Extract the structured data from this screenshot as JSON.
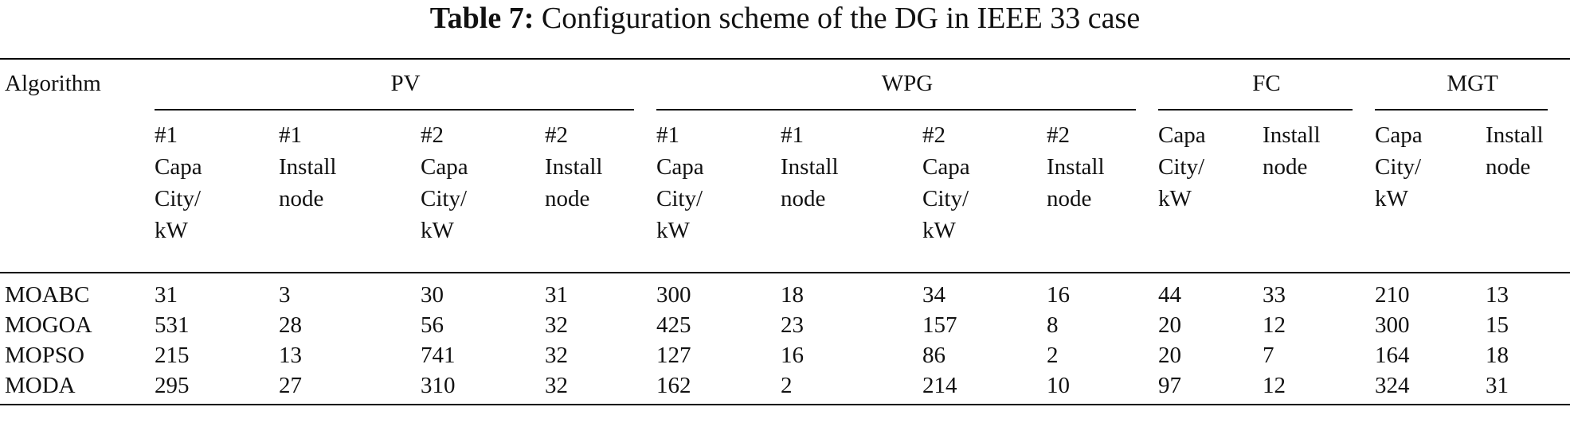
{
  "caption": {
    "label": "Table 7:",
    "text": "Configuration scheme of the DG in IEEE 33 case"
  },
  "table": {
    "corner": "Algorithm",
    "groups": [
      "PV",
      "WPG",
      "FC",
      "MGT"
    ],
    "subheaders": [
      [
        "#1",
        "Capa",
        "City/",
        "kW"
      ],
      [
        "#1",
        "Install",
        "node"
      ],
      [
        "#2",
        "Capa",
        "City/",
        "kW"
      ],
      [
        "#2",
        "Install",
        "node"
      ],
      [
        "#1",
        "Capa",
        "City/",
        "kW"
      ],
      [
        "#1",
        "Install",
        "node"
      ],
      [
        "#2",
        "Capa",
        "City/",
        "kW"
      ],
      [
        "#2",
        "Install",
        "node"
      ],
      [
        "Capa",
        "City/",
        "kW"
      ],
      [
        "Install",
        "node"
      ],
      [
        "Capa",
        "City/",
        "kW"
      ],
      [
        "Install",
        "node"
      ]
    ],
    "rows": [
      {
        "algorithm": "MOABC",
        "values": [
          "31",
          "3",
          "30",
          "31",
          "300",
          "18",
          "34",
          "16",
          "44",
          "33",
          "210",
          "13"
        ]
      },
      {
        "algorithm": "MOGOA",
        "values": [
          "531",
          "28",
          "56",
          "32",
          "425",
          "23",
          "157",
          "8",
          "20",
          "12",
          "300",
          "15"
        ]
      },
      {
        "algorithm": "MOPSO",
        "values": [
          "215",
          "13",
          "741",
          "32",
          "127",
          "16",
          "86",
          "2",
          "20",
          "7",
          "164",
          "18"
        ]
      },
      {
        "algorithm": "MODA",
        "values": [
          "295",
          "27",
          "310",
          "32",
          "162",
          "2",
          "214",
          "10",
          "97",
          "12",
          "324",
          "31"
        ]
      }
    ]
  }
}
